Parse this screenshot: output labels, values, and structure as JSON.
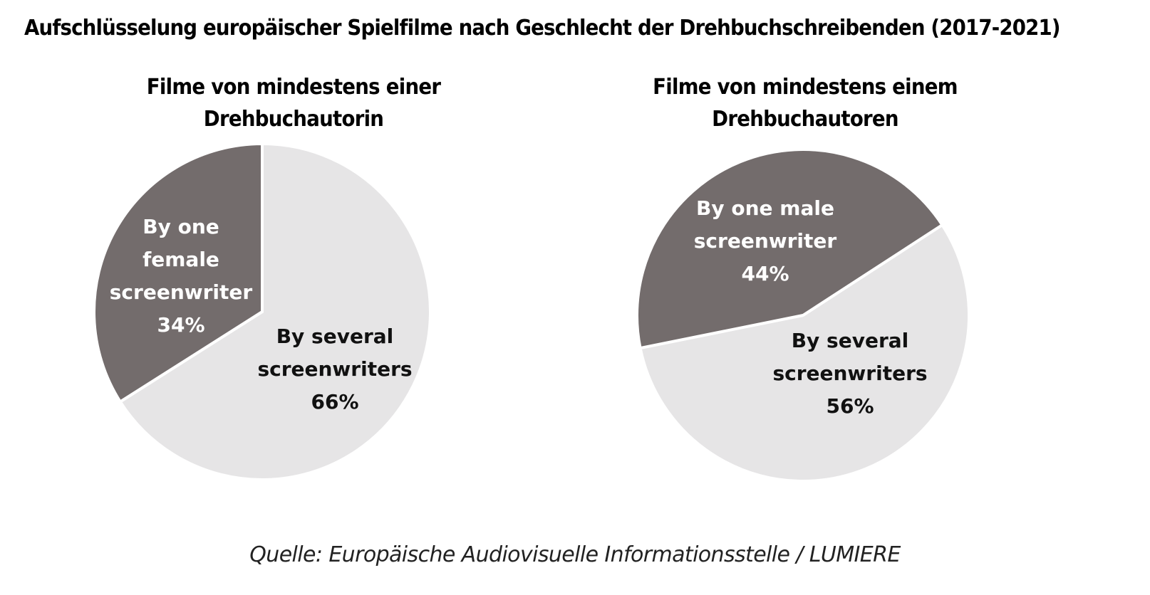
{
  "title": "Aufschlüsselung europäischer Spielfilme nach Geschlecht der Drehbuchschreibenden (2017-2021)",
  "source": "Quelle: Europäische Audiovisuelle Informationsstelle / LUMIERE",
  "colors": {
    "dark": "#736c6c",
    "light": "#e6e5e6",
    "text_on_dark": "#ffffff",
    "text_on_light": "#111111"
  },
  "chart_data": [
    {
      "type": "pie",
      "title_lines": [
        "Filme von mindestens einer",
        "Drehbuchautorin"
      ],
      "slices": [
        {
          "label_lines": [
            "By several",
            "screenwriters"
          ],
          "value": 66,
          "value_label": "66%",
          "color": "#e6e5e6"
        },
        {
          "label_lines": [
            "By one",
            "female",
            "screenwriter"
          ],
          "value": 34,
          "value_label": "34%",
          "color": "#736c6c"
        }
      ]
    },
    {
      "type": "pie",
      "title_lines": [
        "Filme von mindestens einem",
        "Drehbuchautoren"
      ],
      "slices": [
        {
          "label_lines": [
            "By several",
            "screenwriters"
          ],
          "value": 56,
          "value_label": "56%",
          "color": "#e6e5e6"
        },
        {
          "label_lines": [
            "By one male",
            "screenwriter"
          ],
          "value": 44,
          "value_label": "44%",
          "color": "#736c6c"
        }
      ]
    }
  ]
}
